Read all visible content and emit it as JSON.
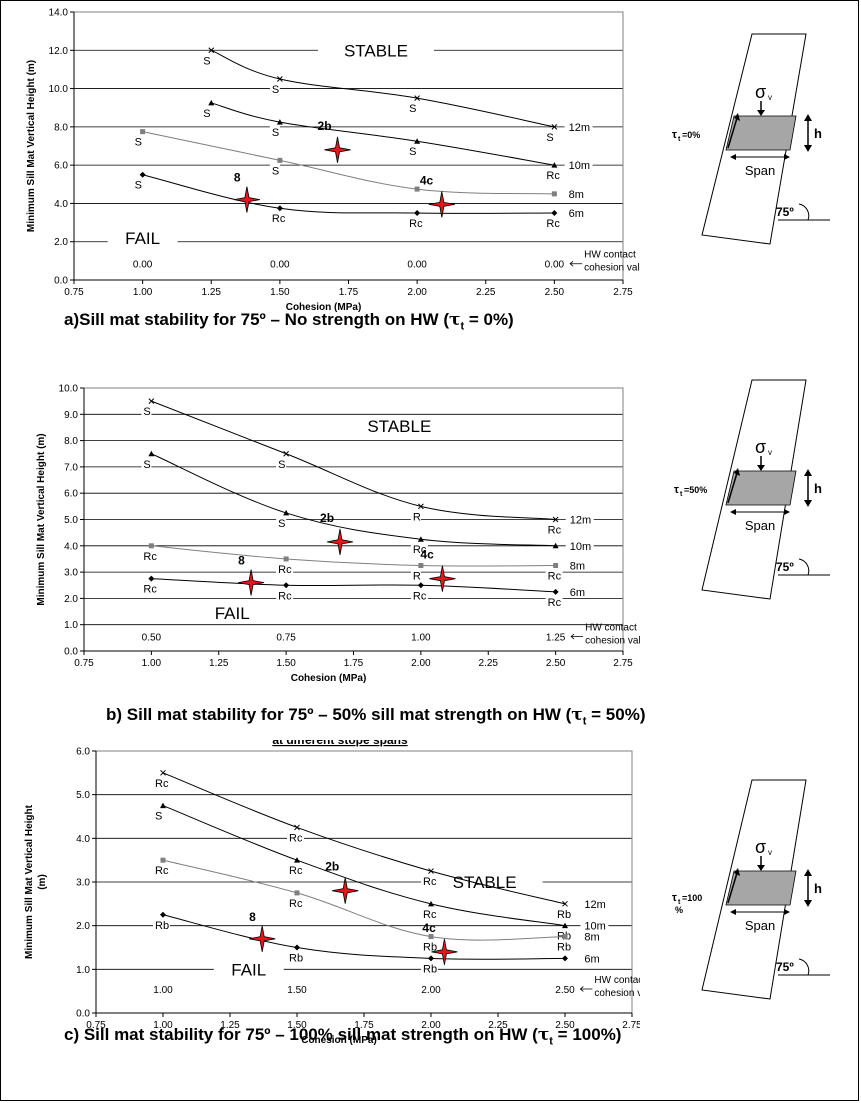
{
  "chart_data": [
    {
      "type": "line",
      "xlabel": "Cohesion (MPa)",
      "ylabel": "Minimum Sill Mat Vertical Height (m)",
      "xlim": [
        0.75,
        2.75
      ],
      "ylim": [
        0.0,
        14.0
      ],
      "xticks": [
        "0.75",
        "1.00",
        "1.25",
        "1.50",
        "1.75",
        "2.00",
        "2.25",
        "2.50",
        "2.75"
      ],
      "yticks": [
        "0.0",
        "2.0",
        "4.0",
        "6.0",
        "8.0",
        "10.0",
        "12.0",
        "14.0"
      ],
      "gridlines_y": [
        2,
        4,
        6,
        8,
        10,
        12
      ],
      "stable_label": "STABLE",
      "fail_label": "FAIL",
      "hw_contact_label": [
        "HW contact",
        "cohesion value"
      ],
      "hw_values": [
        {
          "x": 1.0,
          "text": "0.00"
        },
        {
          "x": 1.5,
          "text": "0.00"
        },
        {
          "x": 2.0,
          "text": "0.00"
        },
        {
          "x": 2.5,
          "text": "0.00"
        }
      ],
      "series": [
        {
          "name": "12m",
          "marker": "x",
          "color": "#000000",
          "points": [
            [
              1.25,
              12.0
            ],
            [
              1.5,
              10.5
            ],
            [
              2.0,
              9.5
            ],
            [
              2.5,
              8.0
            ]
          ],
          "labels": [
            "S",
            "S",
            "S",
            "S"
          ]
        },
        {
          "name": "10m",
          "marker": "triangle",
          "color": "#000000",
          "points": [
            [
              1.25,
              9.25
            ],
            [
              1.5,
              8.25
            ],
            [
              2.0,
              7.25
            ],
            [
              2.5,
              6.0
            ]
          ],
          "labels": [
            "S",
            "S",
            "S",
            "Rc"
          ]
        },
        {
          "name": "8m",
          "marker": "square",
          "color": "#7f7f7f",
          "points": [
            [
              1.0,
              7.75
            ],
            [
              1.5,
              6.25
            ],
            [
              2.0,
              4.75
            ],
            [
              2.5,
              4.5
            ]
          ],
          "labels": [
            "S",
            "S",
            "",
            ""
          ]
        },
        {
          "name": "6m",
          "marker": "diamond",
          "color": "#000000",
          "points": [
            [
              1.0,
              5.5
            ],
            [
              1.5,
              3.75
            ],
            [
              2.0,
              3.5
            ],
            [
              2.5,
              3.5
            ]
          ],
          "labels": [
            "S",
            "Rc",
            "Rc",
            "Rc"
          ]
        }
      ],
      "cases": [
        {
          "label": "2b",
          "x": 1.71,
          "y": 6.8
        },
        {
          "label": "8",
          "x": 1.38,
          "y": 4.2
        },
        {
          "label": "4c",
          "x": 2.09,
          "y": 3.95
        }
      ]
    },
    {
      "type": "line",
      "xlabel": "Cohesion (MPa)",
      "ylabel": "Minimum Sill Mat Vertical Height (m)",
      "xlim": [
        0.75,
        2.75
      ],
      "ylim": [
        0.0,
        10.0
      ],
      "xticks": [
        "0.75",
        "1.00",
        "1.25",
        "1.50",
        "1.75",
        "2.00",
        "2.25",
        "2.50",
        "2.75"
      ],
      "yticks": [
        "0.0",
        "1.0",
        "2.0",
        "3.0",
        "4.0",
        "5.0",
        "6.0",
        "7.0",
        "8.0",
        "9.0",
        "10.0"
      ],
      "gridlines_y": [
        1,
        2,
        3,
        4,
        5,
        6,
        7,
        8,
        9
      ],
      "stable_label": "STABLE",
      "fail_label": "FAIL",
      "hw_contact_label": [
        "HW contact",
        "cohesion value"
      ],
      "hw_values": [
        {
          "x": 1.0,
          "text": "0.50"
        },
        {
          "x": 1.5,
          "text": "0.75"
        },
        {
          "x": 2.0,
          "text": "1.00"
        },
        {
          "x": 2.5,
          "text": "1.25"
        }
      ],
      "series": [
        {
          "name": "12m",
          "marker": "x",
          "color": "#000000",
          "points": [
            [
              1.0,
              9.5
            ],
            [
              1.5,
              7.5
            ],
            [
              2.0,
              5.5
            ],
            [
              2.5,
              5.0
            ]
          ],
          "labels": [
            "S",
            "S",
            "R",
            "Rc"
          ]
        },
        {
          "name": "10m",
          "marker": "triangle",
          "color": "#000000",
          "points": [
            [
              1.0,
              7.5
            ],
            [
              1.5,
              5.25
            ],
            [
              2.0,
              4.25
            ],
            [
              2.5,
              4.0
            ]
          ],
          "labels": [
            "S",
            "S",
            "Rc",
            ""
          ]
        },
        {
          "name": "8m",
          "marker": "square",
          "color": "#7f7f7f",
          "points": [
            [
              1.0,
              4.0
            ],
            [
              1.5,
              3.5
            ],
            [
              2.0,
              3.25
            ],
            [
              2.5,
              3.25
            ]
          ],
          "labels": [
            "Rc",
            "Rc",
            "R",
            "Rc"
          ]
        },
        {
          "name": "6m",
          "marker": "diamond",
          "color": "#000000",
          "points": [
            [
              1.0,
              2.75
            ],
            [
              1.5,
              2.5
            ],
            [
              2.0,
              2.5
            ],
            [
              2.5,
              2.25
            ]
          ],
          "labels": [
            "Rc",
            "Rc",
            "Rc",
            "Rc"
          ]
        }
      ],
      "cases": [
        {
          "label": "2b",
          "x": 1.7,
          "y": 4.15
        },
        {
          "label": "8",
          "x": 1.37,
          "y": 2.6
        },
        {
          "label": "4c",
          "x": 2.08,
          "y": 2.75
        }
      ]
    },
    {
      "type": "line",
      "xlabel": "Cohesion (MPa)",
      "ylabel": "Minimum Sill Mat Vertical Height (m)",
      "xlim": [
        0.75,
        2.75
      ],
      "ylim": [
        0.0,
        6.0
      ],
      "xticks": [
        "0.75",
        "1.00",
        "1.25",
        "1.50",
        "1.75",
        "2.00",
        "2.25",
        "2.50",
        "2.75"
      ],
      "yticks": [
        "0.0",
        "1.0",
        "2.0",
        "3.0",
        "4.0",
        "5.0",
        "6.0"
      ],
      "gridlines_y": [
        1,
        2,
        3,
        4,
        5
      ],
      "stable_label": "STABLE",
      "fail_label": "FAIL",
      "hw_contact_label": [
        "HW contact",
        "cohesion value"
      ],
      "hw_values": [
        {
          "x": 1.0,
          "text": "1.00"
        },
        {
          "x": 1.5,
          "text": "1.50"
        },
        {
          "x": 2.0,
          "text": "2.00"
        },
        {
          "x": 2.5,
          "text": "2.50"
        }
      ],
      "series": [
        {
          "name": "12m",
          "marker": "x",
          "color": "#000000",
          "points": [
            [
              1.0,
              5.5
            ],
            [
              1.5,
              4.25
            ],
            [
              2.0,
              3.25
            ],
            [
              2.5,
              2.5
            ]
          ],
          "labels": [
            "Rc",
            "Rc",
            "Rc",
            "Rb"
          ]
        },
        {
          "name": "10m",
          "marker": "triangle",
          "color": "#000000",
          "points": [
            [
              1.0,
              4.75
            ],
            [
              1.5,
              3.5
            ],
            [
              2.0,
              2.5
            ],
            [
              2.5,
              2.0
            ]
          ],
          "labels": [
            "S",
            "Rc",
            "Rc",
            "Rb"
          ]
        },
        {
          "name": "8m",
          "marker": "square",
          "color": "#7f7f7f",
          "points": [
            [
              1.0,
              3.5
            ],
            [
              1.5,
              2.75
            ],
            [
              2.0,
              1.75
            ],
            [
              2.5,
              1.75
            ]
          ],
          "labels": [
            "Rc",
            "Rc",
            "Rb",
            "Rb"
          ]
        },
        {
          "name": "6m",
          "marker": "diamond",
          "color": "#000000",
          "points": [
            [
              1.0,
              2.25
            ],
            [
              1.5,
              1.5
            ],
            [
              2.0,
              1.25
            ],
            [
              2.5,
              1.25
            ]
          ],
          "labels": [
            "Rb",
            "Rb",
            "Rb",
            ""
          ]
        }
      ],
      "cases": [
        {
          "label": "2b",
          "x": 1.68,
          "y": 2.8
        },
        {
          "label": "8",
          "x": 1.37,
          "y": 1.7
        },
        {
          "label": "4c",
          "x": 2.05,
          "y": 1.4
        }
      ]
    }
  ],
  "diagrams": [
    {
      "sigma": "σ",
      "sigma_sub": "v",
      "tau": "τ",
      "tau_sub": "t",
      "tau_value": "=0%",
      "h_label": "h",
      "span_label": "Span",
      "angle_label": "75º"
    },
    {
      "sigma": "σ",
      "sigma_sub": "v",
      "tau": "τ",
      "tau_sub": "t",
      "tau_value": "=50%",
      "h_label": "h",
      "span_label": "Span",
      "angle_label": "75º"
    },
    {
      "sigma": "σ",
      "sigma_sub": "v",
      "tau": "τ",
      "tau_sub": "t",
      "tau_value": "=100",
      "tau_value2": "%",
      "h_label": "h",
      "span_label": "Span",
      "angle_label": "75º"
    }
  ],
  "captions": [
    {
      "text": "a)Sill mat stability for 75º – No strength on HW (",
      "tau": "τ",
      "sub": "t",
      "tail": " = 0%)"
    },
    {
      "text": "b) Sill mat stability for 75º – 50% sill mat strength on HW (",
      "tau": "τ",
      "sub": "t",
      "tail": " = 50%)"
    },
    {
      "text": "c) Sill mat stability for 75º – 100% sill mat strength on HW (",
      "tau": "τ",
      "sub": "t",
      "tail": " = 100%)"
    }
  ],
  "partial_title": "at different stope spans"
}
